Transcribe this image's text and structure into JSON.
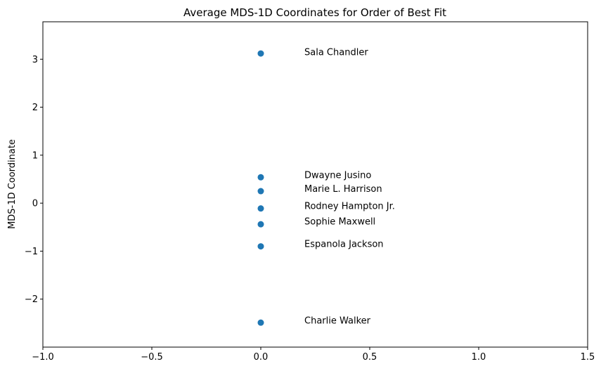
{
  "chart_data": {
    "type": "scatter",
    "title": "Average MDS-1D Coordinates for Order of Best Fit",
    "xlabel": "",
    "ylabel": "MDS-1D Coordinate",
    "xlim": [
      -1.0,
      1.5
    ],
    "ylim": [
      -3.0,
      3.78
    ],
    "x_ticks": [
      -1.0,
      -0.5,
      0.0,
      0.5,
      1.0,
      1.5
    ],
    "x_tick_labels": [
      "−1.0",
      "−0.5",
      "0.0",
      "0.5",
      "1.0",
      "1.5"
    ],
    "y_ticks": [
      -2,
      -1,
      0,
      1,
      2,
      3
    ],
    "y_tick_labels": [
      "−2",
      "−1",
      "0",
      "1",
      "2",
      "3"
    ],
    "grid": false,
    "marker_color": "#1f77b4",
    "annotation_x_offset": 0.2,
    "points": [
      {
        "name": "Sala Chandler",
        "x": 0.0,
        "y": 3.12,
        "label_y": 3.15
      },
      {
        "name": "Dwayne Jusino",
        "x": 0.0,
        "y": 0.54,
        "label_y": 0.59
      },
      {
        "name": "Marie L. Harrison",
        "x": 0.0,
        "y": 0.25,
        "label_y": 0.3
      },
      {
        "name": "Rodney Hampton Jr.",
        "x": 0.0,
        "y": -0.11,
        "label_y": -0.06
      },
      {
        "name": "Sophie Maxwell",
        "x": 0.0,
        "y": -0.44,
        "label_y": -0.38
      },
      {
        "name": "Espanola Jackson",
        "x": 0.0,
        "y": -0.9,
        "label_y": -0.85
      },
      {
        "name": "Charlie Walker",
        "x": 0.0,
        "y": -2.49,
        "label_y": -2.44
      }
    ]
  }
}
